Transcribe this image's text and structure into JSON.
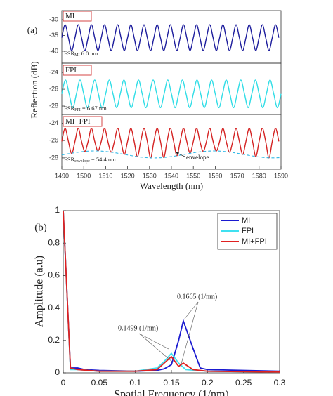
{
  "chart_data": [
    {
      "type": "line",
      "panel_label": "(a)",
      "xlim": [
        1490,
        1590
      ],
      "ylim": [
        -43.8,
        -27.1
      ],
      "yticks": [
        -30,
        -35,
        -40
      ],
      "annotations": [
        {
          "main": "FSR",
          "sub": "MI",
          "tail": " 6.0 nm"
        }
      ],
      "series": [
        {
          "name": "MI",
          "color": "#1c1c9c",
          "x": [
            1490,
            1491.5,
            1493,
            1494.5,
            1496,
            1497.5,
            1499,
            1500.5,
            1502,
            1503.5,
            1505,
            1506.5,
            1508,
            1509.5,
            1511,
            1512.5,
            1514,
            1515.5,
            1517,
            1518.5,
            1520,
            1521.5,
            1523,
            1524.5,
            1526,
            1527.5,
            1529,
            1530.5,
            1532,
            1533.5,
            1535,
            1536.5,
            1538,
            1539.5,
            1541,
            1542.5,
            1544,
            1545.5,
            1547,
            1548.5,
            1550,
            1551.5,
            1553,
            1554.5,
            1556,
            1557.5,
            1559,
            1560.5,
            1562,
            1563.5,
            1565,
            1566.5,
            1568,
            1569.5,
            1571,
            1572.5,
            1574,
            1575.5,
            1577,
            1578.5,
            1580,
            1581.5,
            1583,
            1584.5,
            1586,
            1587.5,
            1589
          ],
          "values": [
            -35.7,
            -31.6,
            -35.7,
            -39.8,
            -35.7,
            -31.6,
            -35.7,
            -39.8,
            -35.7,
            -31.6,
            -35.7,
            -39.8,
            -35.7,
            -31.6,
            -35.7,
            -39.8,
            -35.7,
            -31.6,
            -35.7,
            -39.8,
            -35.7,
            -31.6,
            -35.7,
            -39.8,
            -35.7,
            -31.6,
            -35.7,
            -39.8,
            -35.7,
            -31.6,
            -35.7,
            -39.8,
            -35.7,
            -31.6,
            -35.7,
            -39.8,
            -35.7,
            -31.6,
            -35.7,
            -39.8,
            -35.7,
            -31.6,
            -35.7,
            -39.8,
            -35.7,
            -31.6,
            -35.7,
            -39.8,
            -35.7,
            -31.6,
            -35.7,
            -39.8,
            -35.7,
            -31.6,
            -35.7,
            -39.8,
            -35.7,
            -31.6,
            -35.7,
            -39.8,
            -35.7,
            -31.6,
            -35.7,
            -39.8,
            -35.7,
            -31.6,
            -35.7
          ]
        }
      ]
    },
    {
      "type": "line",
      "ylabel": "Reflection (dB)",
      "xlim": [
        1490,
        1590
      ],
      "ylim": [
        -29,
        -22.9
      ],
      "yticks": [
        -24,
        -26,
        -28
      ],
      "annotations": [
        {
          "main": "FSR",
          "sub": "FPI",
          "tail": " = 6.67 nm"
        }
      ],
      "series": [
        {
          "name": "FPI",
          "color": "#30dde6",
          "x": [
            1490,
            1491.67,
            1493.33,
            1495,
            1496.67,
            1498.33,
            1500,
            1501.67,
            1503.33,
            1505,
            1506.67,
            1508.33,
            1510,
            1511.67,
            1513.33,
            1515,
            1516.67,
            1518.33,
            1520,
            1521.67,
            1523.33,
            1525,
            1526.67,
            1528.33,
            1530,
            1531.67,
            1533.33,
            1535,
            1536.67,
            1538.33,
            1540,
            1541.67,
            1543.33,
            1545,
            1546.67,
            1548.33,
            1550,
            1551.67,
            1553.33,
            1555,
            1556.67,
            1558.33,
            1560,
            1561.67,
            1563.33,
            1565,
            1566.67,
            1568.33,
            1570,
            1571.67,
            1573.33,
            1575,
            1576.67,
            1578.33,
            1580,
            1581.67,
            1583.33,
            1585,
            1586.67,
            1588.33,
            1590
          ],
          "values": [
            -26.55,
            -24.9,
            -26.55,
            -28.2,
            -26.55,
            -24.9,
            -26.55,
            -28.2,
            -26.55,
            -24.9,
            -26.55,
            -28.2,
            -26.55,
            -24.9,
            -26.55,
            -28.2,
            -26.55,
            -24.9,
            -26.55,
            -28.2,
            -26.55,
            -24.9,
            -26.55,
            -28.2,
            -26.55,
            -24.9,
            -26.55,
            -28.2,
            -26.55,
            -24.9,
            -26.55,
            -28.2,
            -26.55,
            -24.9,
            -26.55,
            -28.2,
            -26.55,
            -24.9,
            -26.55,
            -28.2,
            -26.55,
            -24.9,
            -26.55,
            -28.2,
            -26.55,
            -24.9,
            -26.55,
            -28.2,
            -26.55,
            -24.9,
            -26.55,
            -28.2,
            -26.55,
            -24.9,
            -26.55,
            -28.2,
            -26.55,
            -24.9,
            -26.55,
            -28.2,
            -26.55
          ]
        }
      ]
    },
    {
      "type": "line",
      "xlabel": "Wavelength (nm)",
      "xlim": [
        1490,
        1590
      ],
      "ylim": [
        -29.3,
        -23
      ],
      "yticks": [
        -24,
        -26,
        -28
      ],
      "xticks": [
        1490,
        1500,
        1510,
        1520,
        1530,
        1540,
        1550,
        1560,
        1570,
        1580,
        1590
      ],
      "annotations": [
        {
          "main": "FSR",
          "sub": "envelope",
          "tail": " = 54.4 nm"
        }
      ],
      "series": [
        {
          "name": "MI+FPI",
          "color": "#d42222",
          "x": [
            1490,
            1491.5,
            1493,
            1494.5,
            1496,
            1497.5,
            1499,
            1500.5,
            1502,
            1503.5,
            1505,
            1506.5,
            1508,
            1509.5,
            1511,
            1512.5,
            1514,
            1515.5,
            1517,
            1518.5,
            1520,
            1521.5,
            1523,
            1524.5,
            1526,
            1527.5,
            1529,
            1530.5,
            1532,
            1533.5,
            1535,
            1536.5,
            1538,
            1539.5,
            1541,
            1542.5,
            1544,
            1545.5,
            1547,
            1548.5,
            1550,
            1551.5,
            1553,
            1554.5,
            1556,
            1557.5,
            1559,
            1560.5,
            1562,
            1563.5,
            1565,
            1566.5,
            1568,
            1569.5,
            1571,
            1572.5,
            1574,
            1575.5,
            1577,
            1578.5,
            1580,
            1581.5,
            1583,
            1584.5,
            1586,
            1587.5,
            1589
          ],
          "values": [
            -26.1,
            -24.6,
            -26.1,
            -27.5,
            -26.1,
            -24.6,
            -26.1,
            -27.25,
            -26.1,
            -24.6,
            -26.1,
            -27.2,
            -26.1,
            -24.6,
            -26.1,
            -27.35,
            -26.1,
            -24.6,
            -26.1,
            -27.6,
            -26.1,
            -24.6,
            -26.1,
            -27.85,
            -26.1,
            -24.6,
            -26.1,
            -28.0,
            -26.1,
            -24.6,
            -26.1,
            -27.95,
            -26.1,
            -24.6,
            -26.1,
            -27.75,
            -26.1,
            -24.6,
            -26.1,
            -27.45,
            -26.1,
            -24.6,
            -26.1,
            -27.25,
            -26.1,
            -24.6,
            -26.1,
            -27.2,
            -26.1,
            -24.6,
            -26.1,
            -27.35,
            -26.1,
            -24.6,
            -26.1,
            -27.6,
            -26.1,
            -24.6,
            -26.1,
            -27.85,
            -26.1,
            -24.6,
            -26.1,
            -28.0,
            -26.1,
            -24.6,
            -26.1
          ]
        },
        {
          "name": "envelope",
          "color": "#30b8e6",
          "dashed": true,
          "x": [
            1490,
            1495,
            1500,
            1505,
            1510,
            1515,
            1520,
            1525,
            1530,
            1535,
            1540,
            1545,
            1550,
            1555,
            1560,
            1565,
            1570,
            1575,
            1580,
            1585,
            1590
          ],
          "values": [
            -27.66,
            -27.44,
            -27.26,
            -27.2,
            -27.26,
            -27.44,
            -27.66,
            -27.87,
            -27.99,
            -27.98,
            -27.85,
            -27.64,
            -27.41,
            -27.25,
            -27.2,
            -27.28,
            -27.46,
            -27.69,
            -27.89,
            -27.99,
            -27.97
          ]
        }
      ]
    },
    {
      "type": "line",
      "panel_label": "(b)",
      "xlabel": "Spatial Frequency (1/nm)",
      "ylabel": "Amplitude (a.u)",
      "xlim": [
        0,
        0.3
      ],
      "ylim": [
        0,
        1
      ],
      "xticks": [
        0,
        0.05,
        0.1,
        0.15,
        0.2,
        0.25,
        0.3
      ],
      "yticks": [
        0,
        0.2,
        0.4,
        0.6,
        0.8,
        1
      ],
      "legend": "upper right",
      "annotations": [
        {
          "text": "0.1665 (1/nm)"
        },
        {
          "text": "0.1499 (1/nm)"
        }
      ],
      "series": [
        {
          "name": "MI",
          "color": "#1a1ad0",
          "x": [
            0,
            0.01,
            0.02,
            0.03,
            0.05,
            0.1,
            0.13,
            0.14,
            0.15,
            0.16,
            0.1665,
            0.18,
            0.19,
            0.2,
            0.25,
            0.3
          ],
          "values": [
            1,
            0.03,
            0.03,
            0.02,
            0.015,
            0.01,
            0.015,
            0.025,
            0.05,
            0.2,
            0.32,
            0.15,
            0.03,
            0.02,
            0.015,
            0.01
          ]
        },
        {
          "name": "FPI",
          "color": "#40e0f0",
          "x": [
            0,
            0.01,
            0.02,
            0.05,
            0.1,
            0.13,
            0.14,
            0.1499,
            0.16,
            0.17,
            0.2,
            0.3
          ],
          "values": [
            1,
            0.02,
            0.02,
            0.01,
            0.01,
            0.03,
            0.07,
            0.12,
            0.06,
            0.02,
            0.01,
            0.005
          ]
        },
        {
          "name": "MI+FPI",
          "color": "#e02020",
          "x": [
            0,
            0.01,
            0.02,
            0.05,
            0.1,
            0.13,
            0.14,
            0.1499,
            0.16,
            0.1665,
            0.18,
            0.2,
            0.3
          ],
          "values": [
            1,
            0.03,
            0.02,
            0.01,
            0.01,
            0.02,
            0.06,
            0.1,
            0.04,
            0.06,
            0.02,
            0.01,
            0.005
          ]
        }
      ]
    }
  ]
}
